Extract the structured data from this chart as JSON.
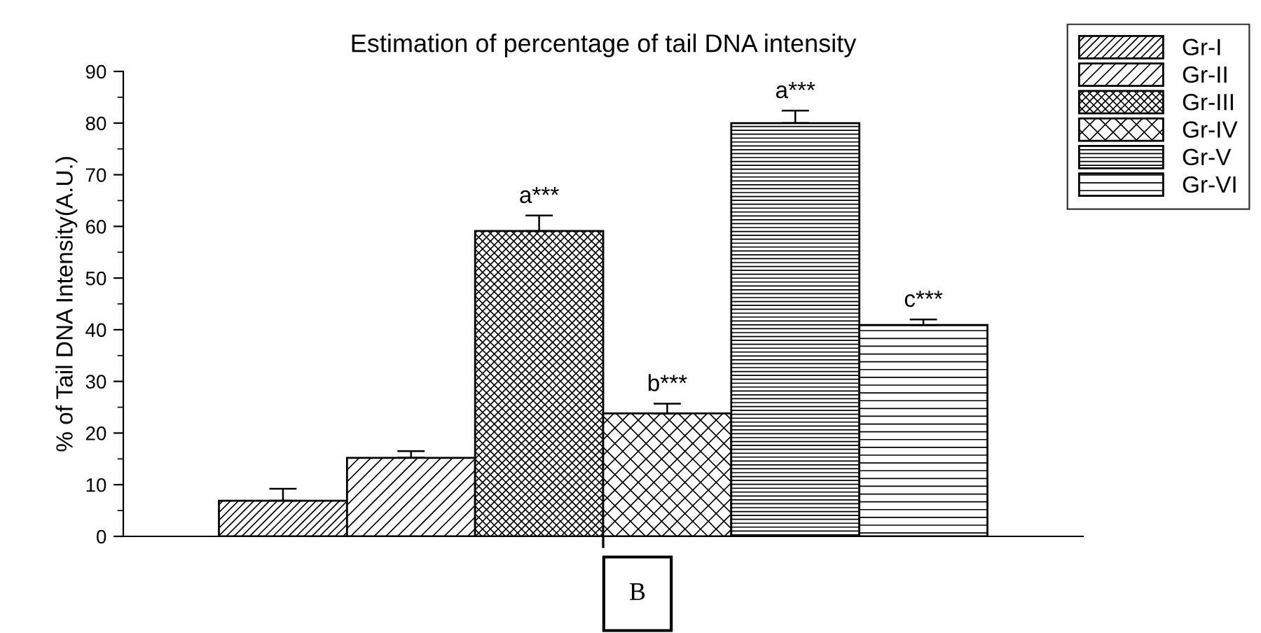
{
  "chart_data": {
    "type": "bar",
    "title": "Estimation of percentage of tail DNA intensity",
    "ylabel": "% of Tail DNA Intensity(A.U.)",
    "categories": [
      null
    ],
    "series": [
      {
        "name": "Gr-I",
        "color": "#000000",
        "values": [
          6.9
        ],
        "errors": [
          [
            6.9,
            9.2
          ]
        ]
      },
      {
        "name": "Gr-II",
        "color": "#000000",
        "values": [
          15.2
        ],
        "errors": [
          [
            15.2,
            16.5
          ]
        ]
      },
      {
        "name": "Gr-III",
        "color": "#000000",
        "values": [
          59.1
        ],
        "errors": [
          [
            59.1,
            62.1
          ]
        ],
        "value_labels": [
          "a***"
        ]
      },
      {
        "name": "Gr-IV",
        "color": "#000000",
        "values": [
          23.8
        ],
        "errors": [
          [
            23.8,
            25.7
          ]
        ],
        "value_labels": [
          "b***"
        ]
      },
      {
        "name": "Gr-V",
        "color": "#000000",
        "values": [
          80
        ],
        "errors": [
          [
            80,
            82.4
          ]
        ],
        "value_labels": [
          "a***"
        ]
      },
      {
        "name": "Gr-VI",
        "color": "#000000",
        "values": [
          40.9
        ],
        "errors": [
          [
            40.9,
            42
          ]
        ],
        "value_labels": [
          "c***"
        ]
      }
    ],
    "ylim": [
      0,
      90
    ],
    "yticks": [
      0,
      10,
      20,
      30,
      40,
      50,
      60,
      70,
      80,
      90
    ],
    "grid": false,
    "legend": "top right",
    "annotations": [
      "B"
    ]
  }
}
